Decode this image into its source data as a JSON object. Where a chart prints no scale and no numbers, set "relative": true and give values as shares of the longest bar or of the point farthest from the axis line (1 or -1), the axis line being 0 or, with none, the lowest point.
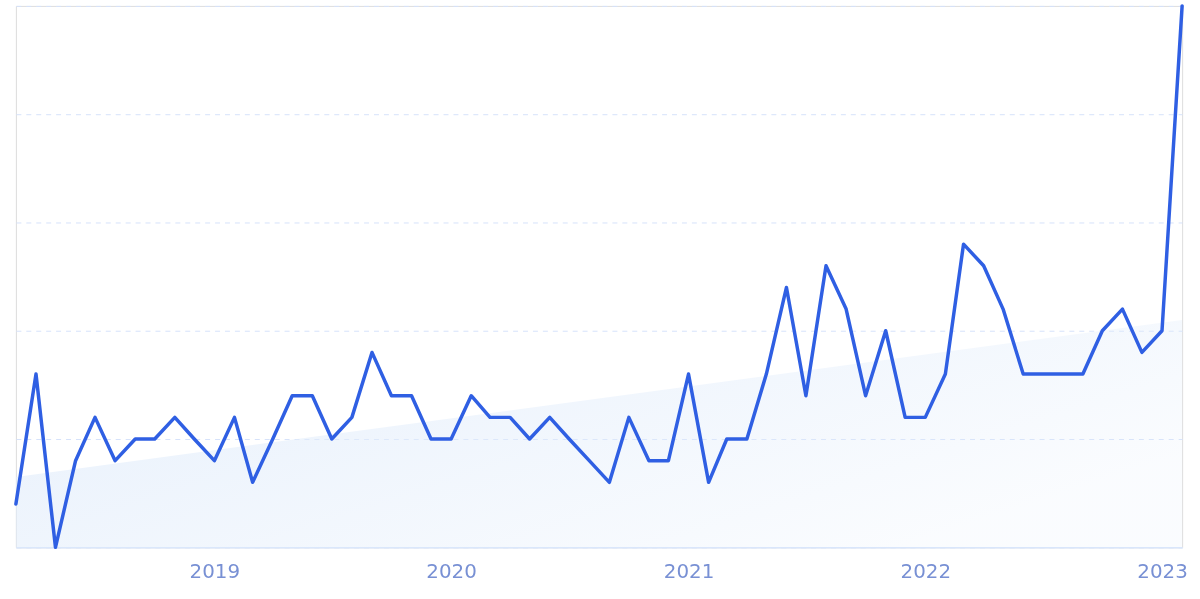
{
  "chart_data": {
    "type": "line",
    "relative": true,
    "grid": "y",
    "tick_labels": "x",
    "x": [
      "2018-03",
      "2018-04",
      "2018-05",
      "2018-06",
      "2018-07",
      "2018-08",
      "2018-09",
      "2018-10",
      "2018-11",
      "2018-12",
      "2019-01",
      "2019-02",
      "2019-03",
      "2019-04",
      "2019-05",
      "2019-06",
      "2019-07",
      "2019-08",
      "2019-09",
      "2019-10",
      "2019-11",
      "2019-12",
      "2020-01",
      "2020-02",
      "2020-03",
      "2020-04",
      "2020-05",
      "2020-06",
      "2020-07",
      "2020-08",
      "2020-09",
      "2020-10",
      "2020-11",
      "2020-12",
      "2021-01",
      "2021-02",
      "2021-03",
      "2021-04",
      "2021-05",
      "2021-06",
      "2021-07",
      "2021-08",
      "2021-09",
      "2021-10",
      "2021-11",
      "2021-12",
      "2022-01",
      "2022-02",
      "2022-03",
      "2022-04",
      "2022-05",
      "2022-06",
      "2022-07",
      "2022-08",
      "2022-09",
      "2022-10",
      "2022-11",
      "2022-12",
      "2023-01",
      "2023-02"
    ],
    "xlim": [
      "2018-03",
      "2023-02"
    ],
    "xticks": [
      "2019",
      "2020",
      "2021",
      "2022",
      "2023"
    ],
    "series": [
      {
        "type": "area",
        "color": "#e2edfb",
        "x": [
          "2018-03",
          "2023-02"
        ],
        "values": [
          0.13,
          0.42
        ]
      },
      {
        "color": "#2f5fe3",
        "values": [
          0.08,
          0.32,
          0,
          0.16,
          0.24,
          0.16,
          0.2,
          0.2,
          0.24,
          0.2,
          0.16,
          0.24,
          0.12,
          0.2,
          0.28,
          0.28,
          0.2,
          0.24,
          0.36,
          0.28,
          0.28,
          0.2,
          0.2,
          0.28,
          0.24,
          0.24,
          0.2,
          0.24,
          0.2,
          0.16,
          0.12,
          0.24,
          0.16,
          0.16,
          0.32,
          0.12,
          0.2,
          0.2,
          0.32,
          0.48,
          0.28,
          0.52,
          0.44,
          0.28,
          0.4,
          0.24,
          0.24,
          0.32,
          0.56,
          0.52,
          0.44,
          0.32,
          0.32,
          0.32,
          0.32,
          0.4,
          0.44,
          0.36,
          0.4,
          1
        ]
      }
    ]
  }
}
